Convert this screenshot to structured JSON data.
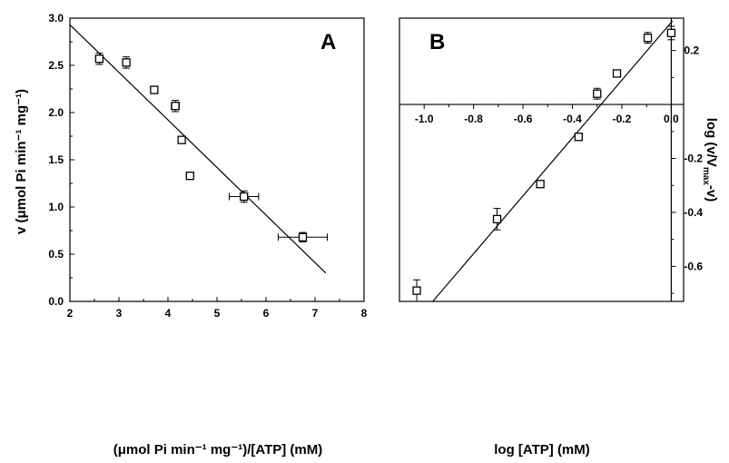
{
  "chart_data": [
    {
      "type": "scatter",
      "panel_label": "A",
      "xlabel": "(μmol Pi min⁻¹ mg⁻¹)/[ATP] (mM)",
      "ylabel": "v (μmol Pi min⁻¹ mg⁻¹)",
      "xlim": [
        2,
        8
      ],
      "ylim": [
        0,
        3
      ],
      "xticks": [
        "2",
        "3",
        "4",
        "5",
        "6",
        "7",
        "8"
      ],
      "yticks": [
        "0.0",
        "0.5",
        "1.0",
        "1.5",
        "2.0",
        "2.5",
        "3.0"
      ],
      "grid": false,
      "points": [
        {
          "x": 2.6,
          "y": 2.57,
          "yerr": 0.06,
          "xerr": 0
        },
        {
          "x": 3.15,
          "y": 2.53,
          "yerr": 0.06,
          "xerr": 0
        },
        {
          "x": 3.72,
          "y": 2.24,
          "yerr": 0,
          "xerr": 0
        },
        {
          "x": 4.15,
          "y": 2.07,
          "yerr": 0.06,
          "xerr": 0.08
        },
        {
          "x": 4.28,
          "y": 1.71,
          "yerr": 0,
          "xerr": 0
        },
        {
          "x": 4.45,
          "y": 1.33,
          "yerr": 0,
          "xerr": 0
        },
        {
          "x": 5.55,
          "y": 1.11,
          "yerr": 0.06,
          "xerr": 0.3
        },
        {
          "x": 6.75,
          "y": 0.68,
          "yerr": 0.05,
          "xerr": 0.5
        }
      ],
      "fit_line": {
        "x": [
          2.0,
          7.22
        ],
        "y": [
          2.93,
          0.3
        ]
      }
    },
    {
      "type": "scatter",
      "panel_label": "B",
      "xlabel": "log [ATP] (mM)",
      "ylabel": "log (v/V",
      "ylabel_sub": "max",
      "ylabel_tail": "-v)",
      "xlim": [
        -1.1,
        0.05
      ],
      "ylim": [
        -0.73,
        0.32
      ],
      "xticks": [
        "-1.0",
        "-0.8",
        "-0.6",
        "-0.4",
        "-0.2",
        "0.0"
      ],
      "xtick_values": [
        -1.0,
        -0.8,
        -0.6,
        -0.4,
        -0.2,
        0.0
      ],
      "yticks": [
        "0.2",
        "-0.2",
        "-0.4",
        "-0.6"
      ],
      "ytick_values": [
        0.2,
        -0.2,
        -0.4,
        -0.6
      ],
      "grid": false,
      "points": [
        {
          "x": -1.03,
          "y": -0.69,
          "yerr": 0.04
        },
        {
          "x": -0.705,
          "y": -0.425,
          "yerr": 0.04
        },
        {
          "x": -0.53,
          "y": -0.295,
          "yerr": 0
        },
        {
          "x": -0.375,
          "y": -0.12,
          "yerr": 0
        },
        {
          "x": -0.3,
          "y": 0.04,
          "yerr": 0.02
        },
        {
          "x": -0.22,
          "y": 0.115,
          "yerr": 0
        },
        {
          "x": -0.095,
          "y": 0.247,
          "yerr": 0.02
        },
        {
          "x": 0.0,
          "y": 0.265,
          "yerr": 0.025
        }
      ],
      "fit_line": {
        "x": [
          -0.965,
          0.005
        ],
        "y": [
          -0.73,
          0.31
        ]
      }
    }
  ]
}
